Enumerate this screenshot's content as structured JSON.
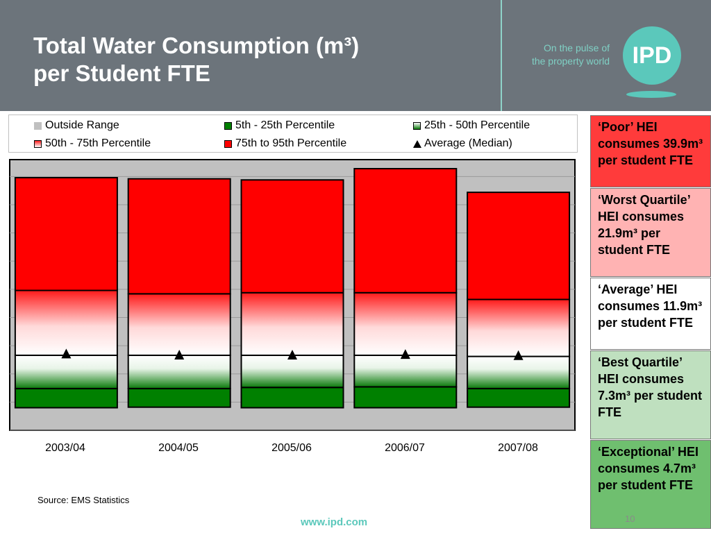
{
  "slide": {
    "title_line1": "Total Water Consumption (m³)",
    "title_line2": "per Student FTE",
    "tagline_line1": "On the pulse of",
    "tagline_line2": "the property world",
    "logo_text": "IPD",
    "source": "Source: EMS Statistics",
    "url": "www.ipd.com",
    "page_number": "10"
  },
  "legend": [
    {
      "label": "Outside Range",
      "swatch": "outside",
      "color": "#c0c0c0"
    },
    {
      "label": "5th - 25th Percentile",
      "swatch": "p5",
      "color": "#008000"
    },
    {
      "label": "25th - 50th Percentile",
      "swatch": "p25",
      "color": "#e8f4e8"
    },
    {
      "label": "50th - 75th Percentile",
      "swatch": "p50",
      "color": "#ff8080"
    },
    {
      "label": "75th to 95th Percentile",
      "swatch": "p75",
      "color": "#ff0000"
    },
    {
      "label": "Average (Median)",
      "swatch": "triangle",
      "color": "#000000"
    }
  ],
  "chart_data": {
    "type": "bar",
    "stacked": true,
    "categories": [
      "2003/04",
      "2004/05",
      "2005/06",
      "2006/07",
      "2007/08"
    ],
    "series": [
      {
        "name": "5th - 25th Percentile",
        "color": "#008000",
        "values": [
          [
            4.0,
            7.4
          ],
          [
            4.1,
            7.4
          ],
          [
            4.0,
            7.6
          ],
          [
            4.0,
            7.7
          ],
          [
            4.1,
            7.4
          ]
        ]
      },
      {
        "name": "25th - 50th Percentile",
        "color": "#e8f4e8",
        "values": [
          [
            7.4,
            13.3
          ],
          [
            7.4,
            13.3
          ],
          [
            7.6,
            13.3
          ],
          [
            7.7,
            13.3
          ],
          [
            7.4,
            13.1
          ]
        ]
      },
      {
        "name": "50th - 75th Percentile",
        "color": "#ff8080",
        "values": [
          [
            13.3,
            24.8
          ],
          [
            13.3,
            24.2
          ],
          [
            13.3,
            24.4
          ],
          [
            13.3,
            24.4
          ],
          [
            13.1,
            23.2
          ]
        ]
      },
      {
        "name": "75th to 95th Percentile",
        "color": "#ff0000",
        "values": [
          [
            24.8,
            44.8
          ],
          [
            24.2,
            44.6
          ],
          [
            24.4,
            44.4
          ],
          [
            24.4,
            46.4
          ],
          [
            23.2,
            42.2
          ]
        ]
      }
    ],
    "average": [
      13.5,
      13.3,
      13.3,
      13.4,
      13.2
    ],
    "ylim": [
      0,
      48
    ],
    "grid": true,
    "legend_position": "top"
  },
  "side_boxes": [
    {
      "text": "‘Poor’ HEI consumes 39.9m³ per student FTE",
      "bg": "#ff3b3b"
    },
    {
      "text": "‘Worst Quartile’ HEI consumes 21.9m³ per student FTE",
      "bg": "#ffb3b3"
    },
    {
      "text": "‘Average’ HEI consumes 11.9m³ per student FTE",
      "bg": "#ffffff"
    },
    {
      "text": "‘Best Quartile’ HEI consumes 7.3m³ per student FTE",
      "bg": "#bfe0bf"
    },
    {
      "text": "‘Exceptional’ HEI consumes 4.7m³ per student FTE",
      "bg": "#6fbf6f"
    }
  ]
}
